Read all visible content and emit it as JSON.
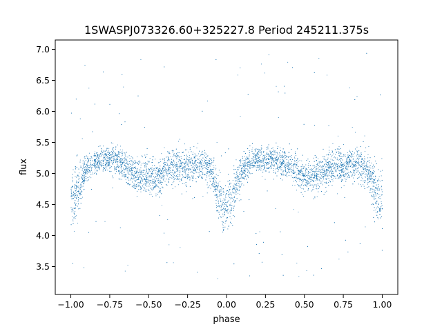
{
  "chart_data": {
    "type": "scatter",
    "title": "1SWASPJ073326.60+325227.8 Period 245211.375s",
    "xlabel": "phase",
    "ylabel": "flux",
    "xlim": [
      -1.1,
      1.1
    ],
    "ylim": [
      3.05,
      7.15
    ],
    "x_ticks": [
      -1.0,
      -0.75,
      -0.5,
      -0.25,
      0.0,
      0.25,
      0.5,
      0.75,
      1.0
    ],
    "x_tick_labels": [
      "−1.00",
      "−0.75",
      "−0.50",
      "−0.25",
      "0.00",
      "0.25",
      "0.50",
      "0.75",
      "1.00"
    ],
    "y_ticks": [
      3.5,
      4.0,
      4.5,
      5.0,
      5.5,
      6.0,
      6.5,
      7.0
    ],
    "y_tick_labels": [
      "3.5",
      "4.0",
      "4.5",
      "5.0",
      "5.5",
      "6.0",
      "6.5",
      "7.0"
    ],
    "grid": false,
    "legend": "none",
    "point_color": "#1f77b4",
    "series": [
      {
        "x": [
          -1.0,
          -0.95,
          -0.9,
          -0.85,
          -0.8,
          -0.75,
          -0.7,
          -0.65,
          -0.6,
          -0.55,
          -0.5,
          -0.45,
          -0.4,
          -0.35,
          -0.3,
          -0.25,
          -0.2,
          -0.15,
          -0.1,
          -0.05,
          0.0,
          0.05,
          0.1,
          0.15,
          0.2,
          0.25,
          0.3,
          0.35,
          0.4,
          0.45,
          0.5,
          0.55,
          0.6,
          0.65,
          0.7,
          0.75,
          0.8,
          0.85,
          0.9,
          0.95,
          1.0
        ],
        "y_center": [
          4.55,
          4.75,
          5.1,
          5.18,
          5.22,
          5.25,
          5.22,
          5.1,
          5.0,
          4.95,
          4.95,
          4.92,
          5.05,
          5.12,
          5.1,
          5.1,
          5.12,
          5.15,
          5.05,
          4.65,
          4.35,
          4.7,
          5.05,
          5.18,
          5.22,
          5.22,
          5.25,
          5.2,
          5.15,
          5.02,
          4.95,
          4.92,
          5.0,
          5.1,
          5.12,
          5.1,
          5.15,
          5.18,
          5.05,
          4.75,
          4.55
        ],
        "y_spread": [
          0.45,
          0.35,
          0.2,
          0.18,
          0.18,
          0.18,
          0.2,
          0.22,
          0.25,
          0.25,
          0.25,
          0.25,
          0.25,
          0.25,
          0.25,
          0.25,
          0.25,
          0.22,
          0.22,
          0.3,
          0.38,
          0.3,
          0.22,
          0.18,
          0.18,
          0.18,
          0.18,
          0.2,
          0.22,
          0.25,
          0.25,
          0.25,
          0.25,
          0.25,
          0.25,
          0.25,
          0.22,
          0.22,
          0.25,
          0.35,
          0.45
        ]
      }
    ]
  }
}
